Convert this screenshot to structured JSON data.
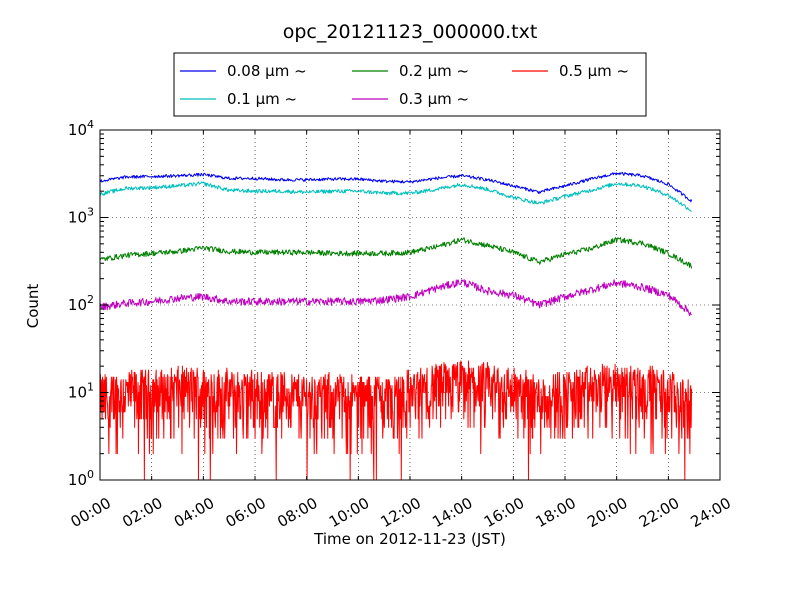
{
  "chart_data": {
    "type": "line",
    "title": "opc_20121123_000000.txt",
    "xlabel": "Time on 2012-11-23 (JST)",
    "ylabel": "Count",
    "yscale": "log",
    "ylim": [
      1,
      10000
    ],
    "xlim": [
      "00:00",
      "24:00"
    ],
    "grid": true,
    "legend_position": "top-center, above plot",
    "x_ticks": [
      "00:00",
      "02:00",
      "04:00",
      "06:00",
      "08:00",
      "10:00",
      "12:00",
      "14:00",
      "16:00",
      "18:00",
      "20:00",
      "22:00",
      "24:00"
    ],
    "y_ticks": [
      {
        "value": 1,
        "base": "10",
        "exp": "0"
      },
      {
        "value": 10,
        "base": "10",
        "exp": "1"
      },
      {
        "value": 100,
        "base": "10",
        "exp": "2"
      },
      {
        "value": 1000,
        "base": "10",
        "exp": "3"
      },
      {
        "value": 10000,
        "base": "10",
        "exp": "4"
      }
    ],
    "x_hours": [
      0,
      1,
      2,
      3,
      4,
      5,
      6,
      7,
      8,
      9,
      10,
      11,
      12,
      13,
      14,
      15,
      16,
      17,
      18,
      19,
      20,
      21,
      22,
      22.9
    ],
    "series": [
      {
        "name": "0.08 μm ~",
        "color": "#0000ee",
        "values": [
          2600,
          2900,
          2950,
          3000,
          3100,
          2800,
          2800,
          2700,
          2700,
          2750,
          2750,
          2600,
          2550,
          2800,
          3000,
          2700,
          2300,
          1950,
          2300,
          2750,
          3200,
          3000,
          2400,
          1550
        ]
      },
      {
        "name": "0.1 μm ~",
        "color": "#00bfbf",
        "values": [
          1850,
          2150,
          2200,
          2300,
          2450,
          2050,
          2000,
          2000,
          1950,
          2000,
          2000,
          1900,
          1900,
          2100,
          2400,
          2100,
          1700,
          1450,
          1750,
          2050,
          2450,
          2300,
          1800,
          1200
        ]
      },
      {
        "name": "0.2 μm ~",
        "color": "#008000",
        "values": [
          330,
          370,
          390,
          410,
          450,
          410,
          400,
          400,
          400,
          390,
          390,
          390,
          400,
          460,
          560,
          480,
          400,
          310,
          380,
          440,
          560,
          510,
          390,
          280
        ]
      },
      {
        "name": "0.3 μm ~",
        "color": "#bf00bf",
        "values": [
          95,
          105,
          110,
          120,
          125,
          110,
          110,
          110,
          110,
          110,
          110,
          115,
          125,
          155,
          185,
          145,
          130,
          100,
          125,
          150,
          180,
          160,
          130,
          80
        ]
      },
      {
        "name": "0.5 μm ~",
        "color": "#ff0000",
        "values": [
          9,
          10,
          10,
          11,
          11,
          10,
          10,
          10,
          9,
          9,
          9,
          9,
          10,
          12,
          13,
          12,
          11,
          9,
          10,
          11,
          12,
          12,
          10,
          7
        ]
      }
    ]
  }
}
